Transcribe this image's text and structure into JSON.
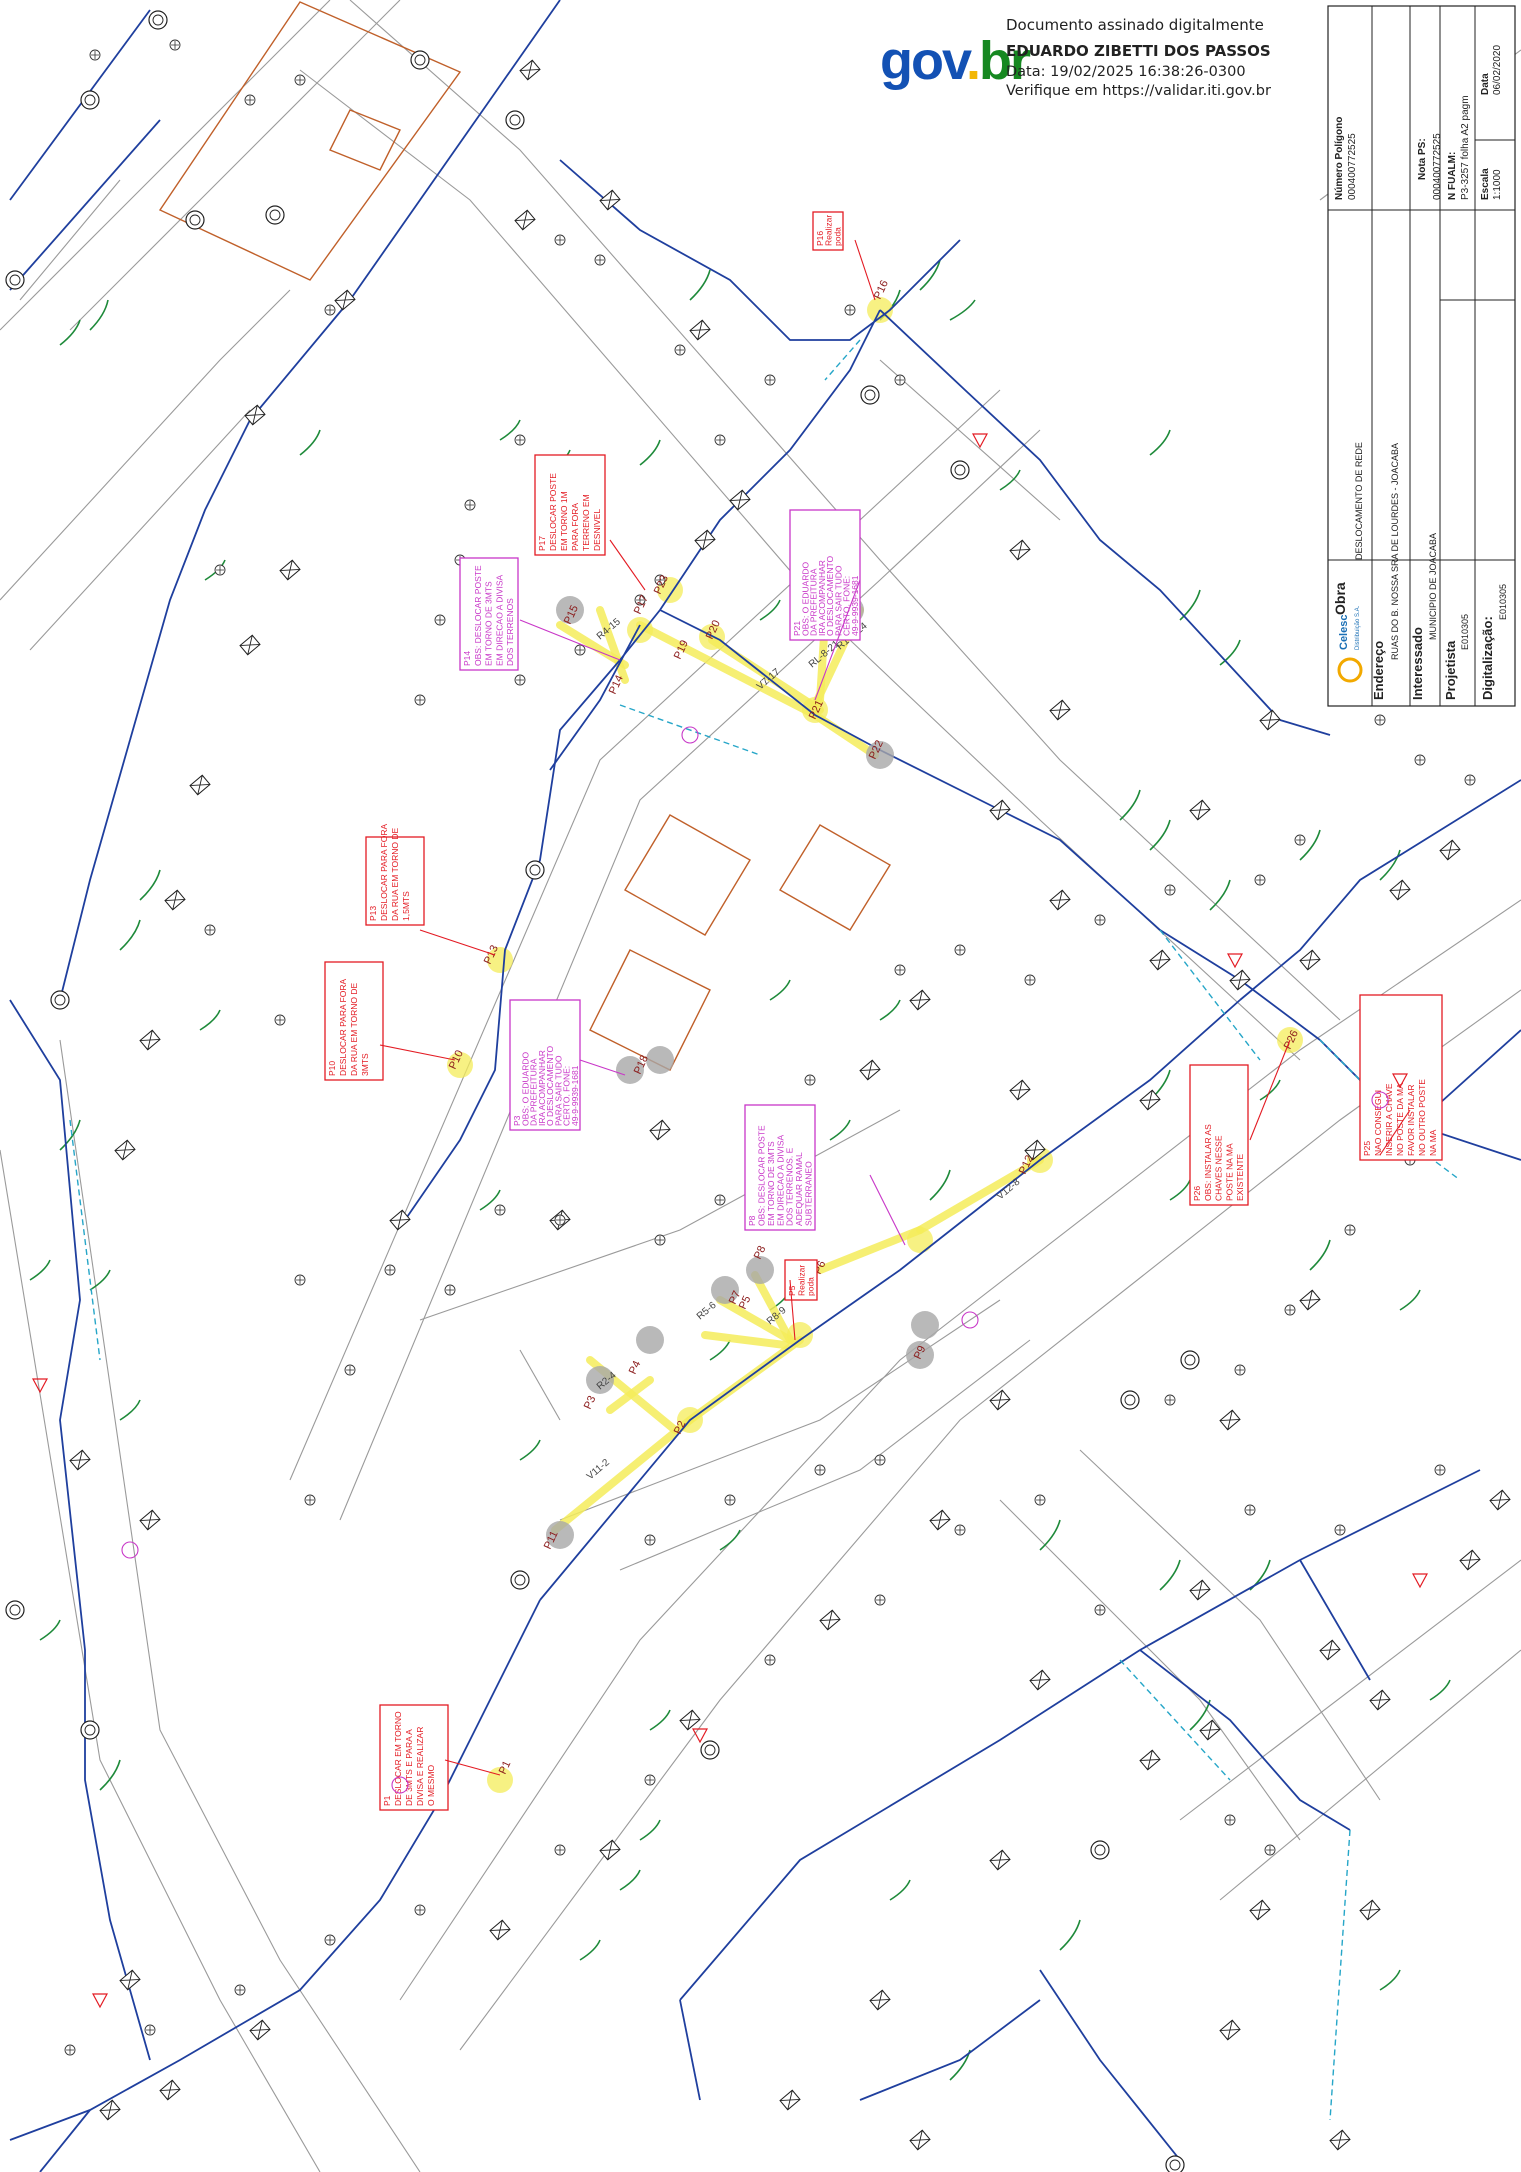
{
  "signature": {
    "line1": "Documento assinado digitalmente",
    "name": "EDUARDO ZIBETTI DOS PASSOS",
    "date": "Data: 19/02/2025 16:38:26-0300",
    "verify": "Verifique em https://validar.iti.gov.br",
    "logo": {
      "part1": "gov",
      "part2": ".",
      "part3": "br"
    }
  },
  "title_block": {
    "numero_poligono_label": "Número Polígono",
    "numero_poligono": "000400772525",
    "nota_ps_label": "Nota PS:",
    "nota_ps": "000400772525",
    "n_fualm_label": "N FUALM:",
    "n_fualm": "P3-3257 folha A2 pagm",
    "escala_label": "Escala",
    "escala": "1:1000",
    "data_label": "Data",
    "data": "06/02/2020",
    "obra_label": "Obra",
    "obra": "DESLOCAMENTO DE REDE",
    "endereco_label": "Endereço",
    "endereco": "RUAS DO B. NOSSA SRA DE LOURDES - JOACABA",
    "interessado_label": "Interessado",
    "interessado": "MUNICIPIO DE JOACABA",
    "projetista_label": "Projetista",
    "projetista": "E010305",
    "digitalizacao_label": "Digitalização:",
    "digitalizacao": "E010305",
    "company": "Celesc",
    "company_sub": "Distribuição S.A."
  },
  "map": {
    "colors": {
      "network": "#1f3f9e",
      "highlight": "#f4ec5a",
      "red_note": "#e31b23",
      "magenta_note": "#c837c8",
      "parcel": "#c0602a",
      "green": "#1e8a3a",
      "cyan": "#26a6c8",
      "gray_marker": "#a8a8a8"
    },
    "red_notes": [
      {
        "id": "P16",
        "lines": [
          "P16",
          "Realizar",
          "poda"
        ]
      },
      {
        "id": "P17",
        "lines": [
          "P17",
          "DESLOCAR POSTE",
          "EM TORNO 1M",
          "PARA FORA",
          "TERRENO EM",
          "DESNIVEL"
        ]
      },
      {
        "id": "P13",
        "lines": [
          "P13",
          "DESLOCAR PARA FORA",
          "DA RUA EM TORNO DE",
          "1,5MTS"
        ]
      },
      {
        "id": "P10",
        "lines": [
          "P10",
          "DESLOCAR PARA FORA",
          "DA RUA EM TORNO DE",
          "3MTS"
        ]
      },
      {
        "id": "P5",
        "lines": [
          "P5",
          "Realizar",
          "poda"
        ]
      },
      {
        "id": "P1",
        "lines": [
          "P1",
          "DESLOCAR EM TORNO",
          "DE 3MTS E PARA A",
          "DIVISA E REALIZAR",
          "O MESMO"
        ]
      },
      {
        "id": "P26",
        "lines": [
          "P26",
          "OBS: INSTALAR AS",
          "CHAVES NESSE",
          "POSTE NA MA",
          "EXISTENTE"
        ]
      },
      {
        "id": "P25",
        "lines": [
          "P25",
          "NAO CONSEGUI",
          "INSERIR A CHAVE",
          "NO POSTE DA MA",
          "FAVOR INSTALAR",
          "NO OUTRO POSTE",
          "NA MA"
        ]
      }
    ],
    "magenta_notes": [
      {
        "id": "P14",
        "lines": [
          "P14",
          "OBS: DESLOCAR POSTE",
          "EM TORNO DE 3MTS",
          "EM DIRECAO A DIVISA",
          "DOS TERRENOS"
        ]
      },
      {
        "id": "P21",
        "lines": [
          "P21",
          "OBS: O EDUARDO",
          "DA PREFEITURA",
          "IRA ACOMPANHAR",
          "O DESLOCAMENTO",
          "PARA SAIR TUDO",
          "CERTO. FONE:",
          "49-9-9939-1681"
        ]
      },
      {
        "id": "P3",
        "lines": [
          "P3",
          "OBS: O EDUARDO",
          "DA PREFEITURA",
          "IRA ACOMPANHAR",
          "O DESLOCAMENTO",
          "PARA SAIR TUDO",
          "CERTO. FONE:",
          "49-9-9939-1681"
        ]
      },
      {
        "id": "P8",
        "lines": [
          "P8",
          "OBS: DESLOCAR POSTE",
          "EM TORNO DE 3MTS",
          "EM DIRECAO A DIVISA",
          "DOS TERRENOS. E",
          "ADEQUAR RAMAL",
          "SUBTERRANEO"
        ]
      }
    ],
    "pole_labels": [
      "P1",
      "P2",
      "P3",
      "P4",
      "P5",
      "P6",
      "P7",
      "P8",
      "P9",
      "P10",
      "P11",
      "P12",
      "P13",
      "P14",
      "P15",
      "P16",
      "P17",
      "P18",
      "P19",
      "P20",
      "P21",
      "P22",
      "P23",
      "P24",
      "P25",
      "P26"
    ],
    "span_labels": [
      "R4-15",
      "RL-8-21",
      "R1-8-24",
      "R2-4",
      "R5-6",
      "R8-9",
      "V11-2",
      "V12-8",
      "V7-17"
    ]
  }
}
